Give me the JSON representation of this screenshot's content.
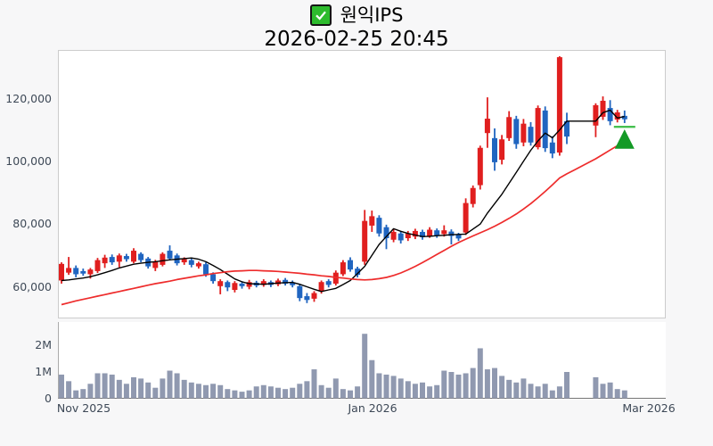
{
  "header": {
    "symbol_label": "원익IPS",
    "checkbox_checked": true,
    "timestamp": "2026-02-25 20:45"
  },
  "colors": {
    "background": "#f7f7f8",
    "panel": "#ffffff",
    "panel_border": "#cccccc",
    "up_candle": "#e01f1f",
    "down_candle": "#2065c0",
    "volume_bar": "#9099b0",
    "ma_fast_line": "#000000",
    "ma_slow_line": "#ee2c2c",
    "marker_green": "#149a26",
    "marker_line_green": "#45c04f",
    "checkbox_green": "#2dbb2d",
    "axis_text": "#3e4957"
  },
  "chart_data": {
    "type": "candlestick+volume",
    "title": "원익IPS",
    "subtitle": "2026-02-25 20:45",
    "grid": false,
    "price_axis": {
      "side": "left",
      "ticks": [
        60000,
        80000,
        100000,
        120000
      ],
      "labels": [
        "60,000",
        "80,000",
        "100,000",
        "120,000"
      ],
      "range_top": 135000,
      "range_bottom": 50000
    },
    "volume_axis": {
      "side": "left",
      "ticks": [
        0,
        1000000,
        2000000
      ],
      "labels": [
        "0",
        "1M",
        "2M"
      ]
    },
    "x_axis": {
      "labels": [
        "Nov 2025",
        "Jan 2026",
        "Mar 2026"
      ],
      "label_slots": [
        3,
        43,
        81
      ]
    },
    "candle_format": [
      "open",
      "high",
      "low",
      "close",
      "volume"
    ],
    "candles": [
      [
        62000,
        67800,
        61000,
        67300,
        900000
      ],
      [
        64500,
        69500,
        63800,
        66000,
        650000
      ],
      [
        66000,
        66800,
        63000,
        64000,
        300000
      ],
      [
        65000,
        65800,
        63500,
        64200,
        350000
      ],
      [
        64000,
        66000,
        62600,
        65500,
        550000
      ],
      [
        65000,
        69200,
        64400,
        68500,
        950000
      ],
      [
        67500,
        70200,
        66000,
        69300,
        950000
      ],
      [
        69500,
        70300,
        67000,
        67800,
        900000
      ],
      [
        68000,
        70600,
        66200,
        70000,
        700000
      ],
      [
        69800,
        70500,
        68000,
        68800,
        550000
      ],
      [
        68000,
        72300,
        67500,
        71500,
        800000
      ],
      [
        70500,
        71000,
        67800,
        68500,
        750000
      ],
      [
        69000,
        69500,
        65800,
        66500,
        600000
      ],
      [
        66000,
        68600,
        65000,
        68000,
        400000
      ],
      [
        67000,
        71000,
        66500,
        70500,
        750000
      ],
      [
        71500,
        73200,
        68400,
        69000,
        1050000
      ],
      [
        70000,
        70600,
        66800,
        67500,
        950000
      ],
      [
        67800,
        69400,
        67000,
        68800,
        700000
      ],
      [
        68500,
        69000,
        66200,
        67000,
        600000
      ],
      [
        66500,
        68000,
        65800,
        67500,
        550000
      ],
      [
        67200,
        67800,
        63200,
        64000,
        500000
      ],
      [
        64000,
        64600,
        61000,
        61800,
        550000
      ],
      [
        60200,
        62400,
        57600,
        61800,
        500000
      ],
      [
        61500,
        62000,
        58600,
        59800,
        350000
      ],
      [
        59000,
        61800,
        58200,
        61200,
        300000
      ],
      [
        61000,
        61600,
        59400,
        60200,
        250000
      ],
      [
        60000,
        62200,
        59200,
        61500,
        300000
      ],
      [
        61300,
        61900,
        59800,
        60400,
        450000
      ],
      [
        60600,
        62400,
        60000,
        61800,
        500000
      ],
      [
        61500,
        62000,
        59900,
        60600,
        450000
      ],
      [
        60800,
        62600,
        60200,
        62000,
        400000
      ],
      [
        62200,
        62800,
        60400,
        61000,
        350000
      ],
      [
        61400,
        62000,
        59800,
        60500,
        400000
      ],
      [
        60200,
        60800,
        55400,
        56400,
        550000
      ],
      [
        57000,
        58000,
        54800,
        55800,
        650000
      ],
      [
        56200,
        58600,
        55200,
        58000,
        1100000
      ],
      [
        58500,
        62000,
        57800,
        61500,
        500000
      ],
      [
        61800,
        62400,
        59800,
        60600,
        400000
      ],
      [
        61000,
        65200,
        60400,
        64500,
        750000
      ],
      [
        64000,
        68500,
        63400,
        67800,
        350000
      ],
      [
        68500,
        69400,
        64800,
        65500,
        300000
      ],
      [
        65800,
        66400,
        63000,
        63800,
        450000
      ],
      [
        68000,
        84500,
        67000,
        81000,
        2450000
      ],
      [
        79500,
        84300,
        77500,
        82500,
        1450000
      ],
      [
        82000,
        82800,
        76000,
        77000,
        950000
      ],
      [
        79000,
        79800,
        72000,
        75500,
        900000
      ],
      [
        75000,
        78400,
        74200,
        77500,
        850000
      ],
      [
        77000,
        77600,
        73800,
        74800,
        750000
      ],
      [
        75500,
        77800,
        74600,
        77000,
        650000
      ],
      [
        76000,
        78500,
        75200,
        77800,
        550000
      ],
      [
        77500,
        78200,
        75000,
        75800,
        600000
      ],
      [
        76200,
        79000,
        75600,
        78200,
        450000
      ],
      [
        78000,
        78600,
        75600,
        76400,
        500000
      ],
      [
        76800,
        79600,
        76000,
        78000,
        1050000
      ],
      [
        77600,
        78300,
        73500,
        76200,
        1000000
      ],
      [
        76600,
        77200,
        74600,
        75400,
        900000
      ],
      [
        77300,
        88200,
        76500,
        86700,
        950000
      ],
      [
        86400,
        92300,
        85300,
        91500,
        1150000
      ],
      [
        92400,
        105000,
        91000,
        104300,
        1900000
      ],
      [
        109000,
        120400,
        104300,
        113600,
        1100000
      ],
      [
        107400,
        110500,
        97000,
        99700,
        1150000
      ],
      [
        100500,
        108400,
        99000,
        107000,
        850000
      ],
      [
        107400,
        116000,
        106500,
        114100,
        700000
      ],
      [
        113500,
        114500,
        104000,
        105500,
        600000
      ],
      [
        106000,
        113500,
        104800,
        112000,
        750000
      ],
      [
        111000,
        112500,
        105000,
        106000,
        550000
      ],
      [
        104500,
        117800,
        103800,
        117000,
        450000
      ],
      [
        116200,
        117500,
        103000,
        104200,
        550000
      ],
      [
        106000,
        108000,
        101000,
        102500,
        300000
      ],
      [
        102800,
        133500,
        101800,
        133200,
        450000
      ],
      [
        112800,
        115500,
        105500,
        107900,
        1000000
      ],
      null,
      null,
      null,
      [
        111400,
        118500,
        107700,
        117900,
        800000
      ],
      [
        114200,
        120700,
        113200,
        119300,
        550000
      ],
      [
        117000,
        119500,
        111500,
        112800,
        600000
      ],
      [
        113300,
        116400,
        112400,
        115600,
        350000
      ],
      [
        114500,
        116200,
        112200,
        113400,
        300000
      ]
    ],
    "series": [
      {
        "name": "ma_fast",
        "color": "#000000",
        "values_k": [
          62.0,
          62.2,
          62.5,
          62.8,
          63.2,
          63.8,
          64.5,
          65.2,
          66.0,
          66.6,
          67.2,
          67.5,
          67.8,
          68.0,
          68.3,
          68.6,
          68.8,
          69.0,
          69.2,
          68.8,
          68.0,
          66.8,
          65.5,
          64.0,
          62.5,
          61.6,
          61.0,
          60.9,
          60.8,
          61.0,
          61.2,
          61.3,
          61.4,
          60.8,
          60.0,
          59.2,
          58.5,
          59.0,
          59.5,
          60.7,
          62.0,
          64.2,
          66.5,
          70.0,
          73.5,
          76.0,
          78.5,
          77.7,
          77.0,
          76.5,
          76.0,
          76.1,
          76.3,
          76.4,
          76.6,
          76.7,
          76.8,
          78.4,
          80.0,
          83.5,
          86.5,
          89.5,
          93.0,
          96.5,
          100.0,
          103.5,
          106.5,
          109.0,
          107.5,
          110.0,
          112.8,
          112.8,
          112.8,
          112.8,
          112.8,
          115.5,
          116.3,
          113.8,
          114.3
        ]
      },
      {
        "name": "ma_slow",
        "color": "#ee2c2c",
        "values_k": [
          54.3,
          54.9,
          55.5,
          56.0,
          56.5,
          57.0,
          57.5,
          58.0,
          58.5,
          59.0,
          59.5,
          60.0,
          60.5,
          61.0,
          61.4,
          61.8,
          62.3,
          62.7,
          63.1,
          63.5,
          63.8,
          64.2,
          64.5,
          64.8,
          65.0,
          65.1,
          65.2,
          65.2,
          65.1,
          65.0,
          64.9,
          64.7,
          64.5,
          64.3,
          64.0,
          63.8,
          63.5,
          63.3,
          63.0,
          62.8,
          62.5,
          62.3,
          62.2,
          62.3,
          62.6,
          63.0,
          63.6,
          64.4,
          65.4,
          66.5,
          67.7,
          69.0,
          70.3,
          71.6,
          72.9,
          74.1,
          75.2,
          76.2,
          77.2,
          78.2,
          79.3,
          80.5,
          81.8,
          83.2,
          84.8,
          86.5,
          88.4,
          90.4,
          92.5,
          94.7,
          96.0,
          97.2,
          98.4,
          99.6,
          100.8,
          102.2,
          103.6,
          105.0,
          106.4
        ]
      }
    ],
    "marker": {
      "shape": "triangle-up",
      "slot": 78,
      "apex_price": 110200,
      "base_price": 104000,
      "half_width": 11,
      "line_price": 111000,
      "line_half_width": 12,
      "color": "#149a26",
      "line_color": "#45c04f"
    }
  }
}
